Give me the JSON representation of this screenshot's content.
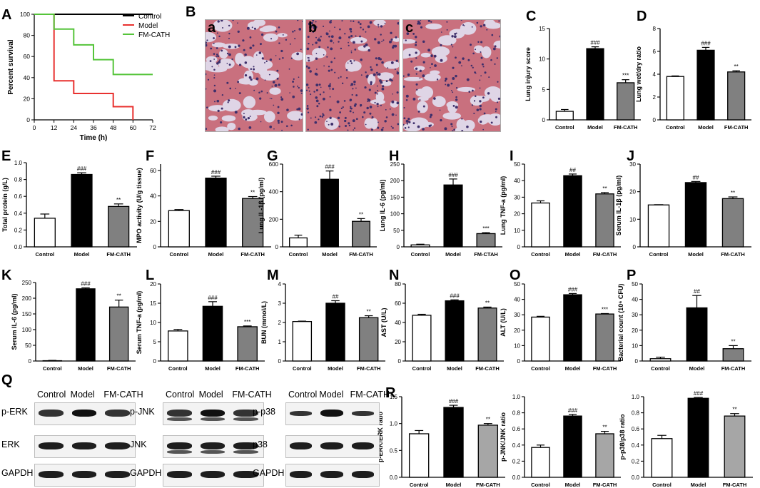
{
  "figure": {
    "panel_labels": [
      "A",
      "B",
      "C",
      "D",
      "E",
      "F",
      "G",
      "H",
      "I",
      "J",
      "K",
      "L",
      "M",
      "N",
      "O",
      "P",
      "Q",
      "R"
    ],
    "histology_labels": [
      "a",
      "b",
      "c"
    ],
    "blot": {
      "header": [
        "Control",
        "Model",
        "FM-CATH"
      ],
      "erk_rows": [
        "p-ERK",
        "ERK",
        "GAPDH"
      ],
      "jnk_rows": [
        "p-JNK",
        "JNK",
        "GAPDH"
      ],
      "p38_rows": [
        "p-p38",
        "p38",
        "GAPDH"
      ]
    },
    "colors": {
      "control": "#ffffff",
      "model": "#000000",
      "fmcath": "#808080",
      "fmcath_r": "#a6a6a6",
      "histo_bg": "#dfd5e6",
      "tissue": "#c9707e",
      "nuclei": "#3e2f6b"
    }
  },
  "chart_data": [
    {
      "id": "A",
      "type": "line",
      "xlabel": "Time (h)",
      "ylabel": "Percent survival",
      "xticks": [
        0,
        12,
        24,
        36,
        48,
        60,
        72
      ],
      "yticks": [
        0,
        20,
        40,
        60,
        80,
        100
      ],
      "xlim": [
        0,
        72
      ],
      "ylim": [
        0,
        100
      ],
      "series": [
        {
          "name": "Control",
          "color": "#000000",
          "points": [
            [
              0,
              100
            ],
            [
              72,
              100
            ]
          ]
        },
        {
          "name": "Model",
          "color": "#e8312f",
          "points": [
            [
              0,
              100
            ],
            [
              12,
              100
            ],
            [
              12,
              37
            ],
            [
              24,
              37
            ],
            [
              24,
              25
            ],
            [
              48,
              25
            ],
            [
              48,
              12.5
            ],
            [
              60,
              12.5
            ],
            [
              60,
              0
            ]
          ]
        },
        {
          "name": "FM-CATH",
          "color": "#55c43a",
          "points": [
            [
              0,
              100
            ],
            [
              12,
              100
            ],
            [
              12,
              86
            ],
            [
              24,
              86
            ],
            [
              24,
              71
            ],
            [
              36,
              71
            ],
            [
              36,
              57
            ],
            [
              48,
              57
            ],
            [
              48,
              43
            ],
            [
              72,
              43
            ]
          ]
        }
      ],
      "legend": "top-right"
    },
    {
      "id": "C",
      "type": "bar",
      "ylabel": "Lung injury score",
      "yticks": [
        0,
        5,
        10,
        15
      ],
      "ylim": [
        0,
        15
      ],
      "categories": [
        "Control",
        "Model",
        "FM-CATH"
      ],
      "values": [
        1.4,
        11.7,
        6.1
      ],
      "errors": [
        0.3,
        0.3,
        0.5
      ],
      "annotations": [
        "",
        "###",
        "***"
      ]
    },
    {
      "id": "D",
      "type": "bar",
      "ylabel": "Lung wet/dry ratio",
      "yticks": [
        0,
        2,
        4,
        6,
        8
      ],
      "ylim": [
        0,
        8
      ],
      "categories": [
        "Control",
        "Model",
        "FM-CATH"
      ],
      "values": [
        3.8,
        6.1,
        4.2
      ],
      "errors": [
        0.05,
        0.25,
        0.1
      ],
      "annotations": [
        "",
        "###",
        "**"
      ]
    },
    {
      "id": "E",
      "type": "bar",
      "ylabel": "Total protein (g/L)",
      "yticks": [
        0.0,
        0.2,
        0.4,
        0.6,
        0.8,
        1.0
      ],
      "ylim": [
        0,
        1.0
      ],
      "categories": [
        "Control",
        "Model",
        "FM-CATH"
      ],
      "values": [
        0.34,
        0.86,
        0.48
      ],
      "errors": [
        0.05,
        0.02,
        0.03
      ],
      "annotations": [
        "",
        "###",
        "**"
      ]
    },
    {
      "id": "F",
      "type": "bar",
      "ylabel": "MPO activity (U/g tissue)",
      "yticks": [
        0,
        20,
        40,
        60
      ],
      "ylim": [
        0,
        65
      ],
      "categories": [
        "Control",
        "Model",
        "FM-CATH"
      ],
      "values": [
        28.5,
        54,
        38
      ],
      "errors": [
        0.8,
        1.5,
        1.5
      ],
      "annotations": [
        "",
        "###",
        "**"
      ]
    },
    {
      "id": "G",
      "type": "bar",
      "ylabel": "Lung IL-1β (pg/ml)",
      "yticks": [
        0,
        200,
        400,
        600
      ],
      "ylim": [
        0,
        600
      ],
      "categories": [
        "Control",
        "Model",
        "FM-CATH"
      ],
      "values": [
        65,
        490,
        185
      ],
      "errors": [
        20,
        60,
        20
      ],
      "annotations": [
        "",
        "###",
        "**"
      ]
    },
    {
      "id": "H",
      "type": "bar",
      "ylabel": "Lung IL-6 (pg/ml)",
      "yticks": [
        0,
        50,
        100,
        150,
        200,
        250
      ],
      "ylim": [
        0,
        250
      ],
      "categories": [
        "Control",
        "Model",
        "FM-CTAH"
      ],
      "values": [
        6,
        187,
        40
      ],
      "errors": [
        2,
        18,
        3
      ],
      "annotations": [
        "",
        "###",
        "***"
      ]
    },
    {
      "id": "I",
      "type": "bar",
      "ylabel": "Lung TNF-a (pg/ml)",
      "yticks": [
        0,
        10,
        20,
        30,
        40,
        50
      ],
      "ylim": [
        0,
        50
      ],
      "categories": [
        "Control",
        "Model",
        "FM-CATH"
      ],
      "values": [
        26.5,
        43,
        32
      ],
      "errors": [
        1.3,
        1,
        0.8
      ],
      "annotations": [
        "",
        "##",
        "**"
      ]
    },
    {
      "id": "J",
      "type": "bar",
      "ylabel": "Serum IL-1β (pg/ml)",
      "yticks": [
        0,
        10,
        20,
        30
      ],
      "ylim": [
        0,
        30
      ],
      "categories": [
        "Control",
        "Model",
        "FM-CATH"
      ],
      "values": [
        15.2,
        23.3,
        17.5
      ],
      "errors": [
        0.1,
        0.4,
        0.6
      ],
      "annotations": [
        "",
        "##",
        "**"
      ]
    },
    {
      "id": "K",
      "type": "bar",
      "ylabel": "Serum IL-6 (pg/ml)",
      "yticks": [
        0,
        50,
        100,
        150,
        200,
        250
      ],
      "ylim": [
        0,
        250
      ],
      "categories": [
        "Control",
        "Model",
        "FM-CATH"
      ],
      "values": [
        1,
        230,
        172
      ],
      "errors": [
        1,
        3,
        22
      ],
      "annotations": [
        "",
        "###",
        "**"
      ]
    },
    {
      "id": "L",
      "type": "bar",
      "ylabel": "Serum TNF-a (pg/ml)",
      "yticks": [
        0,
        5,
        10,
        15,
        20
      ],
      "ylim": [
        0,
        20
      ],
      "categories": [
        "Control",
        "Model",
        "FM-CATH"
      ],
      "values": [
        7.8,
        14.2,
        8.9
      ],
      "errors": [
        0.4,
        1.2,
        0.2
      ],
      "annotations": [
        "",
        "###",
        "***"
      ]
    },
    {
      "id": "M",
      "type": "bar",
      "ylabel": "BUN (mmol/L)",
      "yticks": [
        0,
        1,
        2,
        3,
        4
      ],
      "ylim": [
        0,
        4
      ],
      "categories": [
        "Control",
        "Model",
        "FM-CATH"
      ],
      "values": [
        2.05,
        3.0,
        2.25
      ],
      "errors": [
        0.02,
        0.13,
        0.1
      ],
      "annotations": [
        "",
        "##",
        "**"
      ]
    },
    {
      "id": "N",
      "type": "bar",
      "ylabel": "AST (U/L)",
      "yticks": [
        0,
        20,
        40,
        60,
        80
      ],
      "ylim": [
        0,
        80
      ],
      "categories": [
        "Control",
        "Model",
        "FM-CATH"
      ],
      "values": [
        47.5,
        62.5,
        55
      ],
      "errors": [
        1,
        1,
        1
      ],
      "annotations": [
        "",
        "###",
        "**"
      ]
    },
    {
      "id": "O",
      "type": "bar",
      "ylabel": "ALT (U/L)",
      "yticks": [
        0,
        10,
        20,
        30,
        40,
        50
      ],
      "ylim": [
        0,
        50
      ],
      "categories": [
        "Control",
        "Model",
        "FM-CATH"
      ],
      "values": [
        28.5,
        43,
        30.5
      ],
      "errors": [
        0.5,
        0.8,
        0.3
      ],
      "annotations": [
        "",
        "###",
        "***"
      ]
    },
    {
      "id": "P",
      "type": "bar",
      "ylabel": "Bacterial count (10⁶ CFU)",
      "yticks": [
        0,
        10,
        20,
        30,
        40,
        50
      ],
      "ylim": [
        0,
        50
      ],
      "categories": [
        "Control",
        "Model",
        "FM-CATH"
      ],
      "values": [
        1.5,
        34.5,
        8
      ],
      "errors": [
        1,
        8,
        2
      ],
      "annotations": [
        "",
        "##",
        "**"
      ]
    },
    {
      "id": "R1",
      "type": "bar",
      "ylabel": "p-ERK/ERK ratio",
      "yticks": [
        0.0,
        0.5,
        1.0,
        1.5
      ],
      "ylim": [
        0,
        1.5
      ],
      "categories": [
        "Control",
        "Model",
        "FM-CATH"
      ],
      "values": [
        0.81,
        1.3,
        0.97
      ],
      "errors": [
        0.06,
        0.04,
        0.03
      ],
      "annotations": [
        "",
        "###",
        "**"
      ]
    },
    {
      "id": "R2",
      "type": "bar",
      "ylabel": "p-JNK/JNK ratio",
      "yticks": [
        0.0,
        0.2,
        0.4,
        0.6,
        0.8,
        1.0
      ],
      "ylim": [
        0,
        1.0
      ],
      "categories": [
        "Control",
        "Model",
        "FM-CATH"
      ],
      "values": [
        0.37,
        0.76,
        0.54
      ],
      "errors": [
        0.03,
        0.02,
        0.03
      ],
      "annotations": [
        "",
        "###",
        "**"
      ]
    },
    {
      "id": "R3",
      "type": "bar",
      "ylabel": "p-p38/p38 ratio",
      "yticks": [
        0.0,
        0.2,
        0.4,
        0.6,
        0.8,
        1.0
      ],
      "ylim": [
        0,
        1.0
      ],
      "categories": [
        "Control",
        "Model",
        "FM-CATH"
      ],
      "values": [
        0.48,
        0.98,
        0.76
      ],
      "errors": [
        0.04,
        0.01,
        0.03
      ],
      "annotations": [
        "",
        "###",
        "**"
      ]
    }
  ]
}
